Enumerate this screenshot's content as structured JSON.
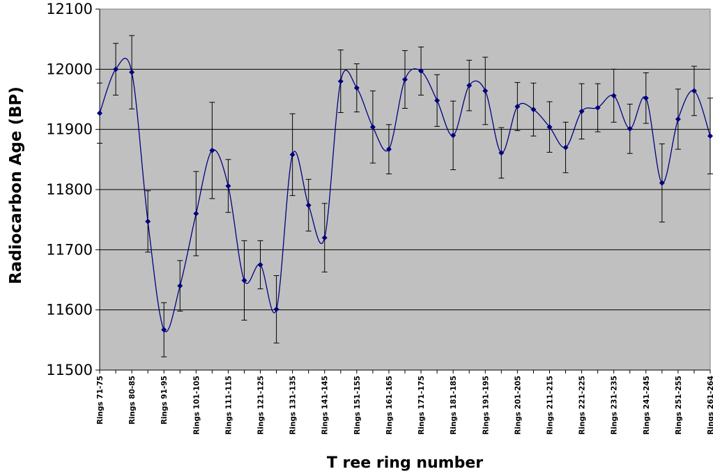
{
  "chart_data": {
    "type": "line",
    "title": "",
    "xlabel": "T ree ring number",
    "ylabel": "Radiocarbon Age (BP)",
    "ylim": [
      11500,
      12100
    ],
    "yticks": [
      11500,
      11600,
      11700,
      11800,
      11900,
      12000,
      12100
    ],
    "grid": true,
    "plot_background": "#C0C0C0",
    "line_color": "#000080",
    "marker_color": "#000080",
    "errorbar_color": "#000000",
    "categories": [
      "Rings 71-75",
      "",
      "Rings 80-85",
      "",
      "Rings 91-95",
      "",
      "Rings 101-105",
      "",
      "Rings 111-115",
      "",
      "Rings 121-125",
      "",
      "Rings 131-135",
      "",
      "Rings 141-145",
      "",
      "Rings 151-155",
      "",
      "Rings 161-165",
      "",
      "Rings 171-175",
      "",
      "Rings 181-185",
      "",
      "Rings 191-195",
      "",
      "Rings 201-205",
      "",
      "Rings 211-215",
      "",
      "Rings 221-225",
      "",
      "Rings 231-235",
      "",
      "Rings 241-245",
      "",
      "Rings 251-255",
      "",
      "Rings 261-264"
    ],
    "series": [
      {
        "values": [
          11927,
          12000,
          11995,
          11747,
          11567,
          11640,
          11760,
          11865,
          11806,
          11649,
          11675,
          11601,
          11858,
          11774,
          11720,
          11980,
          11969,
          11904,
          11867,
          11983,
          11997,
          11948,
          11890,
          11973,
          11964,
          11861,
          11938,
          11933,
          11904,
          11870,
          11930,
          11936,
          11956,
          11901,
          11952,
          11811,
          11917,
          11964,
          11889
        ],
        "errors": [
          50,
          43,
          61,
          51,
          45,
          42,
          70,
          80,
          44,
          66,
          40,
          56,
          68,
          43,
          57,
          52,
          40,
          60,
          41,
          48,
          40,
          43,
          57,
          42,
          56,
          42,
          40,
          44,
          42,
          42,
          46,
          40,
          44,
          41,
          42,
          65,
          50,
          41,
          63
        ]
      }
    ]
  }
}
